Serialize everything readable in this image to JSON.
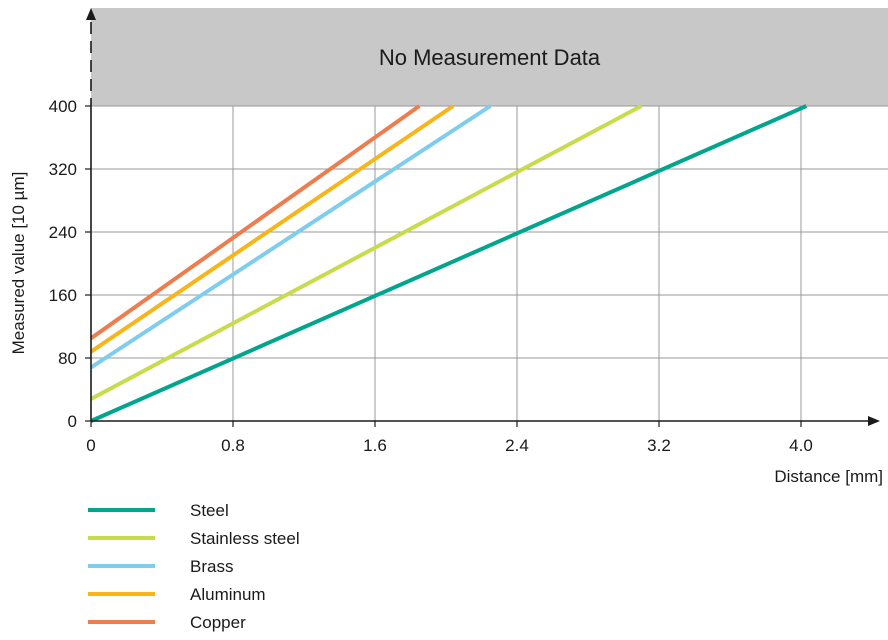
{
  "chart_data": {
    "type": "line",
    "xlabel": "Distance  [mm]",
    "ylabel": "Measured value  [10 µm]",
    "xlim": [
      0,
      4.4
    ],
    "ylim": [
      0,
      400
    ],
    "x_ticks": [
      0,
      0.8,
      1.6,
      2.4,
      3.2,
      4.0
    ],
    "x_tick_labels": [
      "0",
      "0.8",
      "1.6",
      "2.4",
      "3.2",
      "4.0"
    ],
    "y_ticks": [
      0,
      80,
      160,
      240,
      320,
      400
    ],
    "y_tick_labels": [
      "0",
      "80",
      "160",
      "240",
      "320",
      "400"
    ],
    "grid": true,
    "legend_position": "bottom-left",
    "no_data_region": {
      "label": "No Measurement Data",
      "y_from": 400,
      "color": "#c8c8c8"
    },
    "series": [
      {
        "name": "Steel",
        "color": "#00a58e",
        "points": [
          [
            0,
            0
          ],
          [
            4.03,
            400
          ]
        ]
      },
      {
        "name": "Stainless  steel",
        "color": "#c8dc4b",
        "points": [
          [
            0,
            28
          ],
          [
            3.1,
            400
          ]
        ]
      },
      {
        "name": "Brass",
        "color": "#7fcdee",
        "points": [
          [
            0,
            68
          ],
          [
            2.25,
            400
          ]
        ]
      },
      {
        "name": "Aluminum",
        "color": "#f7b51a",
        "points": [
          [
            0,
            88
          ],
          [
            2.04,
            400
          ]
        ]
      },
      {
        "name": "Copper",
        "color": "#ee7d4e",
        "points": [
          [
            0,
            105
          ],
          [
            1.85,
            400
          ]
        ]
      }
    ]
  }
}
